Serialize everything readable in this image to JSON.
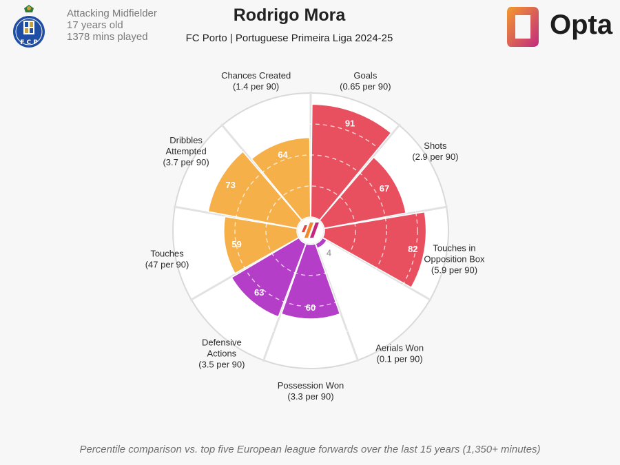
{
  "header": {
    "position": "Attacking Midfielder",
    "age": "17 years old",
    "minutes": "1378 mins played",
    "title": "Rodrigo Mora",
    "subtitle": "FC Porto | Portuguese Primeira Liga 2024-25",
    "logo_text": "Opta",
    "crest_letters": "F C P"
  },
  "footer": "Percentile comparison vs. top five European league forwards over the last 15 years (1,350+ minutes)",
  "colors": {
    "attacking": "#e8505f",
    "possession": "#f5b04a",
    "defending": "#b43ec8",
    "background": "#f7f7f7",
    "ring": "#d9d9d9",
    "logo_orange": "#f28a2e",
    "logo_magenta": "#c2297a"
  },
  "chart_data": {
    "type": "polar-bar",
    "scale": [
      0,
      100
    ],
    "segments": [
      {
        "label": "Goals",
        "value_label": "(0.65 per 90)",
        "percentile": 91,
        "group": "attacking"
      },
      {
        "label": "Shots",
        "value_label": "(2.9 per 90)",
        "percentile": 67,
        "group": "attacking"
      },
      {
        "label": "Touches in\nOpposition Box",
        "value_label": "(5.9 per 90)",
        "percentile": 82,
        "group": "attacking"
      },
      {
        "label": "Aerials Won",
        "value_label": "(0.1 per 90)",
        "percentile": 4,
        "group": "defending"
      },
      {
        "label": "Possession Won",
        "value_label": "(3.3 per 90)",
        "percentile": 60,
        "group": "defending"
      },
      {
        "label": "Defensive\nActions",
        "value_label": "(3.5 per 90)",
        "percentile": 63,
        "group": "defending"
      },
      {
        "label": "Touches",
        "value_label": "(47 per 90)",
        "percentile": 59,
        "group": "possession"
      },
      {
        "label": "Dribbles\nAttempted",
        "value_label": "(3.7 per 90)",
        "percentile": 73,
        "group": "possession"
      },
      {
        "label": "Chances Created",
        "value_label": "(1.4 per 90)",
        "percentile": 64,
        "group": "possession"
      }
    ]
  }
}
